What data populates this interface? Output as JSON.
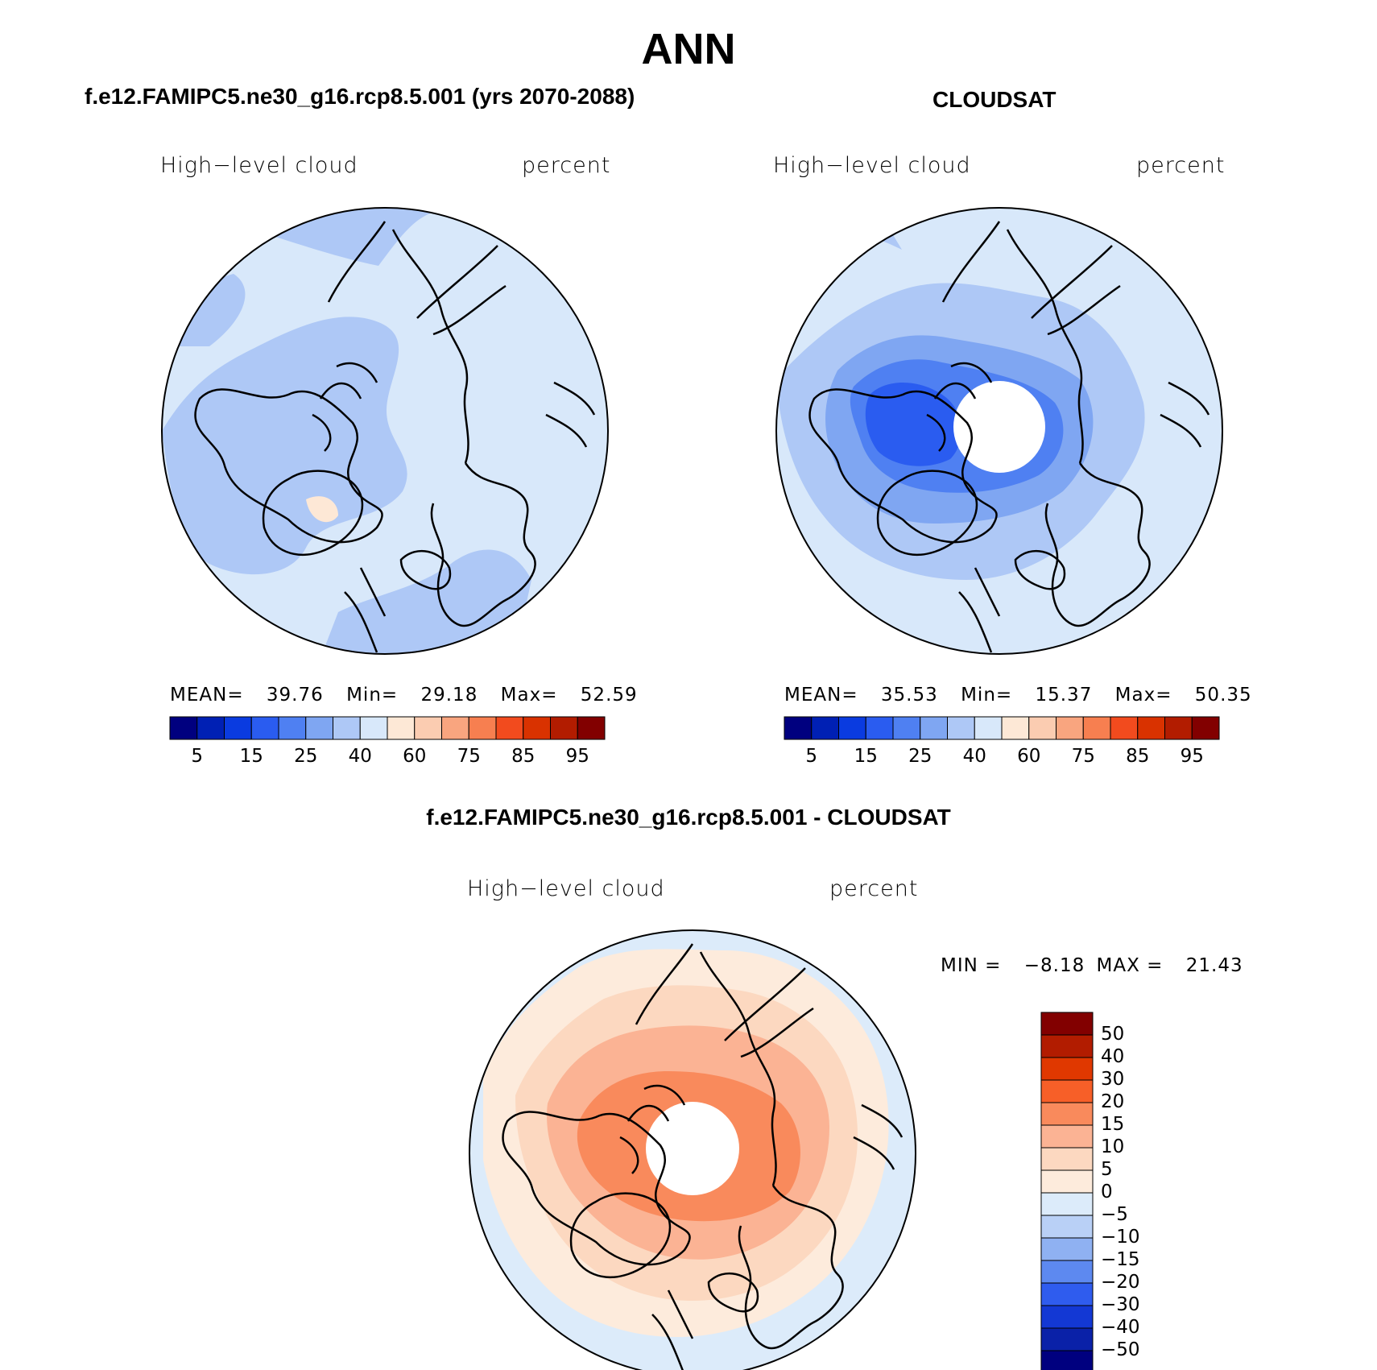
{
  "main_title": "ANN",
  "panels": [
    {
      "title": "f.e12.FAMIPC5.ne30_g16.rcp8.5.001 (yrs 2070-2088)",
      "variable": "High−level cloud",
      "units": "percent",
      "stats": {
        "mean_label": "MEAN=",
        "mean": "39.76",
        "min_label": "Min=",
        "min": "29.18",
        "max_label": "Max=",
        "max": "52.59"
      }
    },
    {
      "title": "CLOUDSAT",
      "variable": "High−level cloud",
      "units": "percent",
      "stats": {
        "mean_label": "MEAN=",
        "mean": "35.53",
        "min_label": "Min=",
        "min": "15.37",
        "max_label": "Max=",
        "max": "50.35"
      }
    },
    {
      "title": "f.e12.FAMIPC5.ne30_g16.rcp8.5.001 - CLOUDSAT",
      "variable": "High−level cloud",
      "units": "percent",
      "stats": {
        "min_label": "MIN =",
        "min": "−8.18",
        "max_label": "MAX =",
        "max": "21.43"
      }
    }
  ],
  "abs_colorbar": {
    "colors": [
      "#00007f",
      "#0020b4",
      "#0a3be0",
      "#2a5cf0",
      "#4f80f2",
      "#7fa6f2",
      "#aec8f6",
      "#d8e8fa",
      "#fde8d6",
      "#fbccb1",
      "#f9a57f",
      "#f77f50",
      "#f24b1e",
      "#d93200",
      "#b21c00",
      "#820000"
    ],
    "labels": [
      "5",
      "15",
      "25",
      "40",
      "60",
      "75",
      "85",
      "95"
    ]
  },
  "diff_colorbar": {
    "colors": [
      "#820000",
      "#b21c00",
      "#e03800",
      "#f75f28",
      "#f98a5c",
      "#fbb394",
      "#fcd8c0",
      "#fdebdc",
      "#dcebfa",
      "#b9d0f6",
      "#8fb1f2",
      "#5d89f0",
      "#2f5cee",
      "#1338d4",
      "#0a21a8",
      "#00007f"
    ],
    "labels": [
      "50",
      "40",
      "30",
      "20",
      "15",
      "10",
      "5",
      "0",
      "−5",
      "−10",
      "−15",
      "−20",
      "−30",
      "−40",
      "−50"
    ]
  }
}
